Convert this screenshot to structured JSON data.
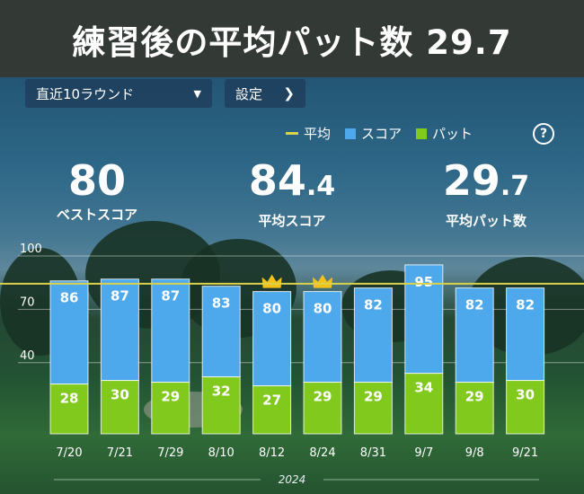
{
  "banner": {
    "title": "練習後の平均パット数  29.7"
  },
  "controls": {
    "period_label": "直近10ラウンド",
    "settings_label": "設定"
  },
  "legend": {
    "average": "平均",
    "score": "スコア",
    "putt": "パット"
  },
  "help": {
    "label": "?"
  },
  "stats": {
    "best": {
      "value": "80",
      "label": "ベストスコア"
    },
    "avg_score": {
      "value_main": "84",
      "value_dec": ".4",
      "label": "平均スコア"
    },
    "avg_putt": {
      "value_main": "29",
      "value_dec": ".7",
      "label": "平均パット数"
    }
  },
  "colors": {
    "score": "#4da8ec",
    "putt": "#82c91e",
    "average": "#d9d24a",
    "crown": "#f2c21b"
  },
  "icons": {
    "best_marker": "crown-icon",
    "dropdown": "caret-down-icon",
    "settings": "chevron-right-icon"
  },
  "chart_data": {
    "type": "bar",
    "categories": [
      "7/20",
      "7/21",
      "7/29",
      "8/10",
      "8/12",
      "8/24",
      "8/31",
      "9/7",
      "9/8",
      "9/21"
    ],
    "series": [
      {
        "name": "スコア",
        "values": [
          86,
          87,
          87,
          83,
          80,
          80,
          82,
          95,
          82,
          82
        ]
      },
      {
        "name": "パット",
        "values": [
          28,
          30,
          29,
          32,
          27,
          29,
          29,
          34,
          29,
          30
        ]
      }
    ],
    "average_score": 84.4,
    "best_rounds": [
      "8/12",
      "8/24"
    ],
    "yticks": [
      40,
      70,
      100
    ],
    "ylim": [
      0,
      100
    ],
    "xlabel": "2024",
    "grid": true
  }
}
